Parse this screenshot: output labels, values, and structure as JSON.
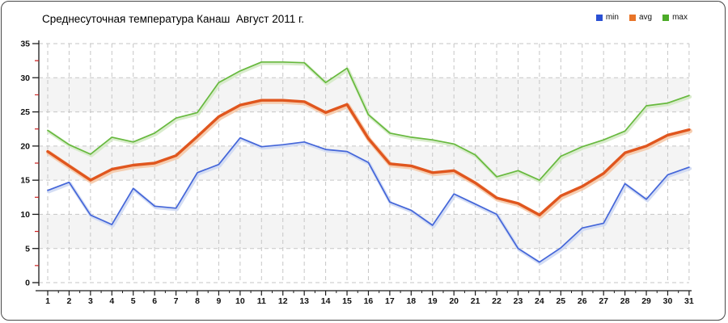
{
  "window": {
    "background": "#ffffff",
    "border_color": "#484848"
  },
  "header": {
    "title": "Среднесуточная температура Канаш  Август 2011 г."
  },
  "legend": {
    "position": "top-right",
    "items": [
      {
        "label": "min",
        "color": "#2a50d4"
      },
      {
        "label": "avg",
        "color": "#e87428"
      },
      {
        "label": "max",
        "color": "#4cab28"
      }
    ]
  },
  "chart_data": {
    "type": "line",
    "title": "Среднесуточная температура Канаш  Август 2011 г.",
    "xlabel": "",
    "ylabel": "",
    "x": [
      1,
      2,
      3,
      4,
      5,
      6,
      7,
      8,
      9,
      10,
      11,
      12,
      13,
      14,
      15,
      16,
      17,
      18,
      19,
      20,
      21,
      22,
      23,
      24,
      25,
      26,
      27,
      28,
      29,
      30,
      31
    ],
    "series": [
      {
        "name": "min",
        "color": "#4466d9",
        "halo": "#ccd7f2",
        "width": 1.7,
        "values": [
          13.5,
          14.7,
          9.9,
          8.5,
          13.8,
          11.2,
          10.9,
          16.1,
          17.3,
          21.2,
          19.9,
          20.2,
          20.6,
          19.5,
          19.2,
          17.6,
          11.8,
          10.6,
          8.4,
          13.0,
          11.5,
          10.0,
          5.0,
          3.0,
          5.1,
          8.0,
          8.7,
          14.5,
          12.2,
          15.8,
          16.9
        ]
      },
      {
        "name": "max",
        "color": "#67b93e",
        "halo": "#d2e9c3",
        "width": 1.7,
        "values": [
          22.3,
          20.2,
          18.8,
          21.3,
          20.6,
          21.9,
          24.1,
          24.9,
          29.3,
          31.0,
          32.3,
          32.3,
          32.2,
          29.3,
          31.4,
          24.6,
          21.9,
          21.3,
          20.9,
          20.3,
          18.7,
          15.5,
          16.4,
          15.0,
          18.5,
          19.9,
          20.9,
          22.2,
          25.9,
          26.3,
          27.4
        ]
      },
      {
        "name": "avg",
        "color": "#e0561e",
        "halo": "#f5c6a3",
        "width": 3.4,
        "values": [
          19.2,
          17.1,
          15.0,
          16.6,
          17.2,
          17.5,
          18.6,
          21.4,
          24.3,
          26.0,
          26.7,
          26.7,
          26.5,
          24.9,
          26.1,
          21.1,
          17.4,
          17.1,
          16.1,
          16.4,
          14.6,
          12.4,
          11.6,
          9.9,
          12.7,
          14.1,
          16.0,
          19.0,
          20.0,
          21.6,
          22.4
        ]
      }
    ],
    "ylim": [
      0,
      35
    ],
    "y_ticks": [
      0,
      5,
      10,
      15,
      20,
      25,
      30,
      35
    ],
    "y_minor_ticks": [
      2.5,
      7.5,
      12.5,
      17.5,
      22.5,
      27.5,
      32.5
    ],
    "grid": "dashed",
    "grid_color": "#c6c6c6",
    "bands": [
      [
        5,
        10
      ],
      [
        15,
        20
      ],
      [
        25,
        30
      ]
    ],
    "band_color": "#f4f4f4",
    "axis_color": "#1a1a1a",
    "tick_label_color": "#111111",
    "minor_tick_color": "#cc2020",
    "legend_position": "top-right"
  }
}
